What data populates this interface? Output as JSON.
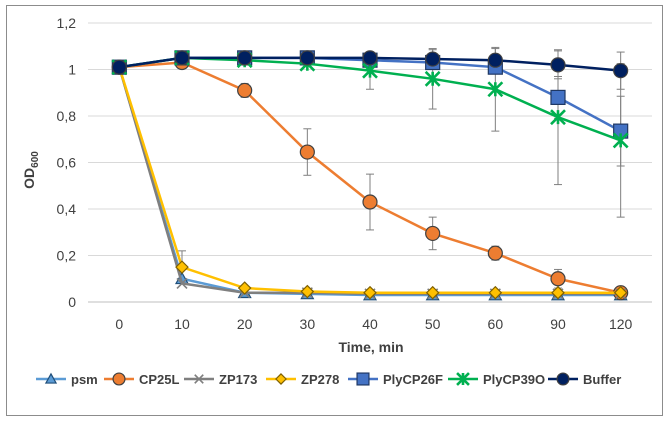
{
  "chart_data": {
    "type": "line",
    "title": "",
    "xlabel": "Time, min",
    "ylabel_main": "OD",
    "ylabel_sub": "600",
    "categories": [
      "0",
      "10",
      "20",
      "30",
      "40",
      "50",
      "60",
      "90",
      "120"
    ],
    "yticks": [
      "0",
      "0,2",
      "0,4",
      "0,6",
      "0,8",
      "1",
      "1,2"
    ],
    "ylim": [
      0,
      1.2
    ],
    "grid": "horizontal",
    "legend_position": "bottom",
    "series": [
      {
        "name": "psm",
        "color": "#5b9bd5",
        "marker": "triangle",
        "values": [
          1.01,
          0.1,
          0.04,
          0.035,
          0.03,
          0.03,
          0.03,
          0.03,
          0.03
        ],
        "errors": [
          0,
          0,
          0,
          0,
          0,
          0,
          0,
          0,
          0
        ]
      },
      {
        "name": "CP25L",
        "color": "#ed7d31",
        "marker": "circle",
        "values": [
          1.01,
          1.03,
          0.91,
          0.645,
          0.43,
          0.295,
          0.21,
          0.1,
          0.04
        ],
        "errors": [
          0,
          0,
          0.03,
          0.1,
          0.12,
          0.07,
          0.03,
          0.04,
          0.02
        ]
      },
      {
        "name": "ZP173",
        "color": "#7f7f7f",
        "marker": "x",
        "values": [
          1.01,
          0.08,
          0.04,
          0.04,
          0.035,
          0.035,
          0.035,
          0.035,
          0.035
        ],
        "errors": [
          0,
          0,
          0,
          0,
          0,
          0,
          0,
          0,
          0
        ]
      },
      {
        "name": "ZP278",
        "color": "#ffc000",
        "marker": "diamond",
        "values": [
          1.01,
          0.15,
          0.06,
          0.045,
          0.04,
          0.04,
          0.04,
          0.04,
          0.04
        ],
        "errors": [
          0,
          0.07,
          0,
          0,
          0,
          0,
          0,
          0,
          0
        ]
      },
      {
        "name": "PlyCP26F",
        "color": "#4472c4",
        "marker": "square",
        "values": [
          1.01,
          1.05,
          1.05,
          1.05,
          1.04,
          1.03,
          1.01,
          0.88,
          0.735
        ],
        "errors": [
          0,
          0,
          0,
          0,
          0,
          0,
          0,
          0.09,
          0.15
        ]
      },
      {
        "name": "PlyCP39O",
        "color": "#00b050",
        "marker": "star",
        "values": [
          1.01,
          1.05,
          1.04,
          1.025,
          0.995,
          0.96,
          0.915,
          0.795,
          0.695
        ],
        "errors": [
          0,
          0,
          0,
          0,
          0.08,
          0.13,
          0.18,
          0.29,
          0.33
        ]
      },
      {
        "name": "Buffer",
        "color": "#002060",
        "marker": "circle",
        "values": [
          1.01,
          1.05,
          1.05,
          1.05,
          1.05,
          1.045,
          1.04,
          1.02,
          0.995
        ],
        "errors": [
          0,
          0,
          0,
          0,
          0,
          0.04,
          0.05,
          0.06,
          0.08
        ]
      }
    ]
  }
}
